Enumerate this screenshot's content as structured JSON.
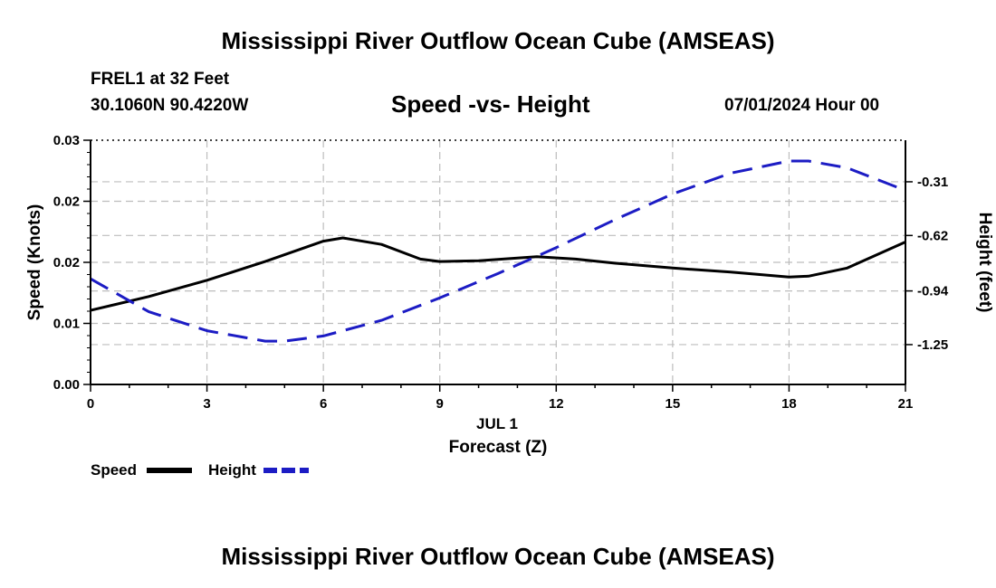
{
  "header": {
    "title": "Mississippi River Outflow Ocean Cube (AMSEAS)",
    "station": "FREL1 at 32 Feet",
    "location": "30.1060N  90.4220W",
    "subtitle": "Speed -vs- Height",
    "datetime": "07/01/2024 Hour 00"
  },
  "footer": {
    "title": "Mississippi River Outflow Ocean Cube (AMSEAS)"
  },
  "chart_data": {
    "type": "line",
    "title": "Speed -vs- Height",
    "xlabel": "Forecast (Z)",
    "xdate_label": "JUL 1",
    "x": [
      0,
      1.5,
      3,
      4.5,
      6,
      6.5,
      7.5,
      8.5,
      9,
      10,
      11.5,
      12.5,
      13.5,
      15,
      16.5,
      18,
      18.5,
      19.5,
      21
    ],
    "xlim": [
      0,
      21
    ],
    "xticks": [
      "0",
      "3",
      "6",
      "9",
      "12",
      "15",
      "18",
      "21"
    ],
    "xtick_values": [
      0,
      3,
      6,
      9,
      12,
      15,
      18,
      21
    ],
    "left_axis": {
      "label": "Speed (Knots)",
      "ylim": [
        0,
        0.03
      ],
      "ticks": [
        "0.00",
        "0.01",
        "0.02",
        "0.02",
        "0.03"
      ],
      "tick_values": [
        0,
        0.0075,
        0.015,
        0.0225,
        0.03
      ]
    },
    "right_axis": {
      "label": "Height (feet)",
      "ylim": [
        -1.48,
        -0.07
      ],
      "ticks": [
        "-1.25",
        "-0.94",
        "-0.62",
        "-0.31"
      ],
      "tick_values": [
        -1.25,
        -0.94,
        -0.62,
        -0.31
      ]
    },
    "series": [
      {
        "name": "Speed",
        "axis": "left",
        "color": "#000000",
        "style": "solid",
        "x": [
          0,
          1.5,
          3,
          4.5,
          6,
          6.5,
          7.5,
          8.5,
          9,
          10,
          11.5,
          12.5,
          13.5,
          15,
          16.5,
          18,
          18.5,
          19.5,
          21
        ],
        "values": [
          0.0091,
          0.0108,
          0.0128,
          0.0151,
          0.0176,
          0.018,
          0.0172,
          0.0154,
          0.0151,
          0.0152,
          0.0157,
          0.0154,
          0.0149,
          0.0143,
          0.0138,
          0.0132,
          0.0133,
          0.0143,
          0.0175
        ]
      },
      {
        "name": "Height",
        "axis": "right",
        "color": "#1c1cc4",
        "style": "dashed",
        "x": [
          0,
          1.5,
          3,
          4.5,
          5,
          6,
          7.5,
          9,
          10.5,
          12,
          13.5,
          15,
          16.5,
          18,
          18.5,
          19.5,
          21
        ],
        "values": [
          -0.87,
          -1.06,
          -1.17,
          -1.23,
          -1.23,
          -1.2,
          -1.11,
          -0.98,
          -0.84,
          -0.69,
          -0.53,
          -0.38,
          -0.26,
          -0.19,
          -0.19,
          -0.23,
          -0.36
        ]
      }
    ],
    "legend": {
      "position": "bottom-left",
      "entries": [
        "Speed",
        "Height"
      ]
    },
    "grid": true
  }
}
